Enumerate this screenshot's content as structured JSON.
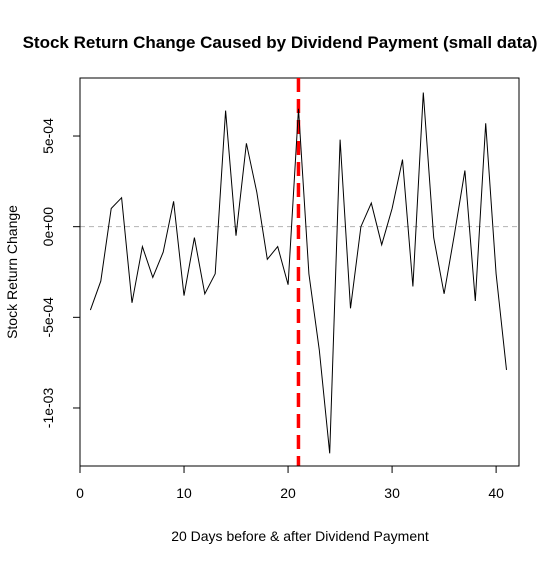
{
  "chart_data": {
    "type": "line",
    "title": "Stock Return Change Caused by Dividend Payment (small data)",
    "xlabel": "20 Days before & after Dividend Payment",
    "ylabel": "Stock Return Change",
    "xlim": [
      0,
      42.2
    ],
    "ylim": [
      -0.00132,
      0.00082
    ],
    "x_ticks": [
      0,
      10,
      20,
      30,
      40
    ],
    "x_tick_labels": [
      "0",
      "10",
      "20",
      "30",
      "40"
    ],
    "y_ticks": [
      -0.001,
      -0.0005,
      0,
      0.0005
    ],
    "y_tick_labels": [
      "-1e-03",
      "-5e-04",
      "0e+00",
      "5e-04"
    ],
    "grid": false,
    "reference_lines": [
      {
        "orientation": "horizontal",
        "value": 0,
        "color": "#b3b3b3",
        "style": "dashed"
      },
      {
        "orientation": "vertical",
        "value": 21,
        "color": "#ff0000",
        "style": "dashed"
      }
    ],
    "series": [
      {
        "color": "#000000",
        "x": [
          1,
          2,
          3,
          4,
          5,
          6,
          7,
          8,
          9,
          10,
          11,
          12,
          13,
          14,
          15,
          16,
          17,
          18,
          19,
          20,
          21,
          22,
          23,
          24,
          25,
          26,
          27,
          28,
          29,
          30,
          31,
          32,
          33,
          34,
          35,
          36,
          37,
          38,
          39,
          40,
          41
        ],
        "values": [
          -0.00046,
          -0.0003,
          0.0001,
          0.00016,
          -0.00042,
          -0.00011,
          -0.00028,
          -0.00014,
          0.00014,
          -0.00038,
          -6e-05,
          -0.00037,
          -0.00026,
          0.00064,
          -5e-05,
          0.00046,
          0.00019,
          -0.00018,
          -0.00011,
          -0.00032,
          0.00065,
          -0.00026,
          -0.00068,
          -0.00125,
          0.00048,
          -0.00045,
          0.0,
          0.00013,
          -0.0001,
          0.0001,
          0.00037,
          -0.00033,
          0.00074,
          -6e-05,
          -0.00037,
          -4e-05,
          0.00031,
          -0.00041,
          0.00057,
          -0.00026,
          -0.00079
        ]
      }
    ]
  }
}
